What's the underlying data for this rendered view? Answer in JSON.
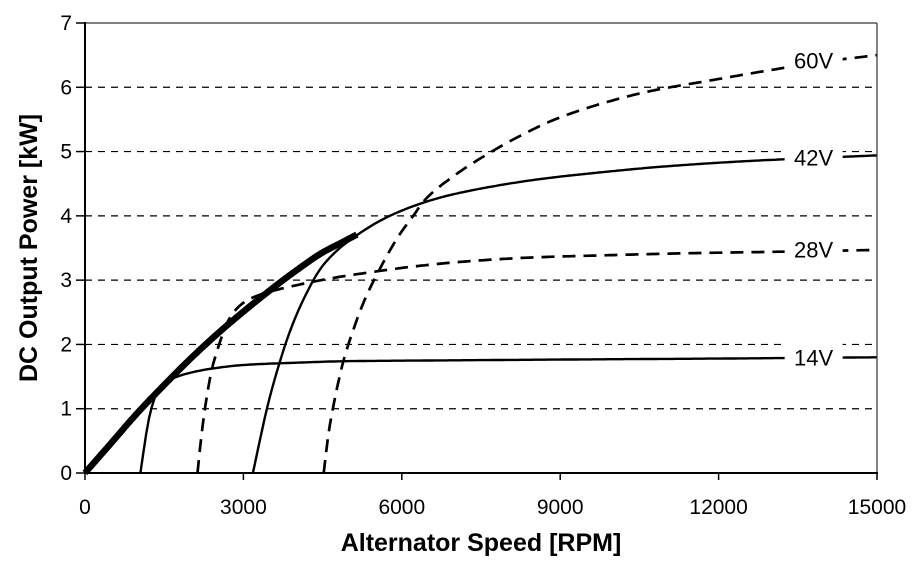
{
  "chart_data": {
    "type": "line",
    "title": "",
    "xlabel": "Alternator Speed [RPM]",
    "ylabel": "DC Output Power [kW]",
    "xlim": [
      0,
      15000
    ],
    "ylim": [
      0,
      7
    ],
    "x_ticks": [
      0,
      3000,
      6000,
      9000,
      12000,
      15000
    ],
    "x_tick_labels": [
      "0",
      "3000",
      "6000",
      "9000",
      "12000",
      "15000"
    ],
    "y_ticks": [
      0,
      1,
      2,
      3,
      4,
      5,
      6,
      7
    ],
    "y_tick_labels": [
      "0",
      "1",
      "2",
      "3",
      "4",
      "5",
      "6",
      "7"
    ],
    "grid": "horizontal dashed gridlines at 1-6 kW; solid border at top (7 kW) and right (15000 RPM)",
    "legend_position": "inline labels on right end of each curve",
    "series": [
      {
        "name": "maximum-power-envelope",
        "label": "",
        "style": "solid",
        "width": 6.5,
        "color": "#000000",
        "points": [
          [
            0,
            0
          ],
          [
            500,
            0.47
          ],
          [
            1000,
            0.94
          ],
          [
            1500,
            1.37
          ],
          [
            2000,
            1.78
          ],
          [
            2500,
            2.16
          ],
          [
            3000,
            2.51
          ],
          [
            3500,
            2.84
          ],
          [
            4000,
            3.15
          ],
          [
            4500,
            3.43
          ],
          [
            4850,
            3.58
          ],
          [
            5150,
            3.71
          ]
        ]
      },
      {
        "name": "14V",
        "label": "14V",
        "style": "solid",
        "width": 2.4,
        "color": "#000000",
        "label_at": [
          13800,
          1.8
        ],
        "points": [
          [
            1050,
            0
          ],
          [
            1120,
            0.4
          ],
          [
            1200,
            0.8
          ],
          [
            1290,
            1.1
          ],
          [
            1400,
            1.3
          ],
          [
            1550,
            1.42
          ],
          [
            1750,
            1.5
          ],
          [
            2050,
            1.57
          ],
          [
            2450,
            1.63
          ],
          [
            3000,
            1.68
          ],
          [
            3800,
            1.71
          ],
          [
            5000,
            1.74
          ],
          [
            6500,
            1.75
          ],
          [
            8200,
            1.76
          ],
          [
            10000,
            1.77
          ],
          [
            12000,
            1.78
          ],
          [
            15000,
            1.8
          ]
        ]
      },
      {
        "name": "28V",
        "label": "28V",
        "style": "dashed",
        "width": 2.7,
        "color": "#000000",
        "label_at": [
          13800,
          3.48
        ],
        "points": [
          [
            2130,
            0
          ],
          [
            2200,
            0.55
          ],
          [
            2290,
            1.1
          ],
          [
            2400,
            1.6
          ],
          [
            2540,
            2.0
          ],
          [
            2700,
            2.35
          ],
          [
            2900,
            2.58
          ],
          [
            3150,
            2.72
          ],
          [
            3500,
            2.82
          ],
          [
            4000,
            2.92
          ],
          [
            4600,
            3.02
          ],
          [
            5300,
            3.11
          ],
          [
            6200,
            3.21
          ],
          [
            7200,
            3.29
          ],
          [
            8400,
            3.35
          ],
          [
            10000,
            3.39
          ],
          [
            11500,
            3.42
          ],
          [
            13000,
            3.44
          ],
          [
            15000,
            3.47
          ]
        ]
      },
      {
        "name": "42V",
        "label": "42V",
        "style": "solid",
        "width": 2.4,
        "color": "#000000",
        "label_at": [
          13800,
          4.91
        ],
        "points": [
          [
            3180,
            0
          ],
          [
            3310,
            0.5
          ],
          [
            3460,
            1.05
          ],
          [
            3650,
            1.62
          ],
          [
            3880,
            2.2
          ],
          [
            4150,
            2.72
          ],
          [
            4480,
            3.2
          ],
          [
            4800,
            3.48
          ],
          [
            5150,
            3.7
          ],
          [
            5650,
            3.95
          ],
          [
            6150,
            4.13
          ],
          [
            6800,
            4.3
          ],
          [
            7600,
            4.44
          ],
          [
            8600,
            4.57
          ],
          [
            9800,
            4.68
          ],
          [
            11000,
            4.77
          ],
          [
            12500,
            4.85
          ],
          [
            13800,
            4.9
          ],
          [
            15000,
            4.94
          ]
        ]
      },
      {
        "name": "60V",
        "label": "60V",
        "style": "dashed",
        "width": 2.7,
        "color": "#000000",
        "label_at": [
          13800,
          6.42
        ],
        "points": [
          [
            4520,
            0
          ],
          [
            4610,
            0.6
          ],
          [
            4730,
            1.15
          ],
          [
            4880,
            1.7
          ],
          [
            5070,
            2.2
          ],
          [
            5300,
            2.7
          ],
          [
            5600,
            3.2
          ],
          [
            5950,
            3.7
          ],
          [
            6200,
            3.98
          ],
          [
            6440,
            4.25
          ],
          [
            6950,
            4.6
          ],
          [
            7600,
            4.95
          ],
          [
            8300,
            5.27
          ],
          [
            8900,
            5.5
          ],
          [
            9800,
            5.75
          ],
          [
            10700,
            5.94
          ],
          [
            11800,
            6.1
          ],
          [
            13000,
            6.27
          ],
          [
            14000,
            6.4
          ],
          [
            15000,
            6.5
          ]
        ]
      }
    ]
  }
}
